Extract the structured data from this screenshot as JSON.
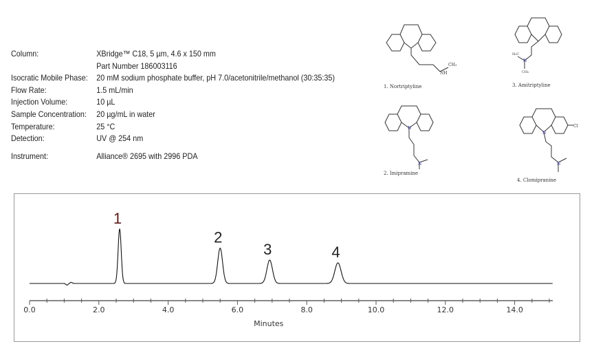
{
  "conditions": [
    {
      "label": "Column:",
      "value": "XBridge™ C18, 5 µm, 4.6 x 150 mm"
    },
    {
      "label": "",
      "value": "Part Number 186003116"
    },
    {
      "label": "Isocratic Mobile Phase:",
      "value": "20 mM sodium phosphate buffer, pH 7.0/acetonitrile/methanol (30:35:35)"
    },
    {
      "label": "Flow Rate:",
      "value": "1.5 mL/min"
    },
    {
      "label": "Injection Volume:",
      "value": "10 µL"
    },
    {
      "label": "Sample Concentration:",
      "value": "20 µg/mL in water"
    },
    {
      "label": "Temperature:",
      "value": "25 °C"
    },
    {
      "label": "Detection:",
      "value": "UV @ 254 nm"
    },
    {
      "label": "Instrument:",
      "value": "Alliance® 2695 with 2996 PDA"
    }
  ],
  "compounds": [
    {
      "label": "1. Nortriptyline"
    },
    {
      "label": "2. Imipramine"
    },
    {
      "label": "3. Amitriptyline"
    },
    {
      "label": "4. Clomipranine"
    }
  ],
  "chart_data": {
    "type": "line",
    "xlabel": "Minutes",
    "ylabel": "",
    "xlim": [
      -0.1,
      15.1
    ],
    "xticks": [
      "0.0",
      "2.0",
      "4.0",
      "6.0",
      "8.0",
      "10.0",
      "12.0",
      "14.0"
    ],
    "grid": false,
    "peaks": [
      {
        "label": "1",
        "retention_time": 2.6,
        "relative_height": 1.0,
        "width": 0.045
      },
      {
        "label": "2",
        "retention_time": 5.5,
        "relative_height": 0.65,
        "width": 0.07
      },
      {
        "label": "3",
        "retention_time": 6.93,
        "relative_height": 0.43,
        "width": 0.08
      },
      {
        "label": "4",
        "retention_time": 8.9,
        "relative_height": 0.38,
        "width": 0.09
      }
    ],
    "colors": {
      "trace": "#111111",
      "axis": "#888888",
      "peak1_label": "#5a1a1a"
    }
  }
}
